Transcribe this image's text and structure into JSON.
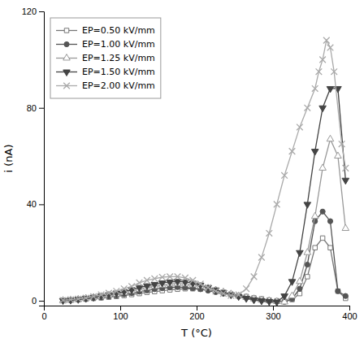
{
  "chart_data": {
    "type": "line",
    "xlabel": "T (°C)",
    "ylabel": "i (nA)",
    "xlim": [
      0,
      400
    ],
    "ylim": [
      -2,
      120
    ],
    "xticks": [
      0,
      100,
      200,
      300,
      400
    ],
    "yticks": [
      0,
      40,
      80,
      120
    ],
    "grid": false,
    "legend": "upper left",
    "series": [
      {
        "name": "EP=0.50 kV/mm",
        "color": "#777777",
        "marker": "square-open",
        "line_style": "solid",
        "x": [
          25,
          35,
          45,
          55,
          65,
          75,
          85,
          95,
          105,
          115,
          125,
          135,
          145,
          155,
          165,
          175,
          185,
          195,
          205,
          215,
          225,
          235,
          245,
          255,
          265,
          275,
          285,
          295,
          305,
          315,
          325,
          335,
          345,
          355,
          365,
          375,
          385,
          395
        ],
        "values": [
          0.1,
          0.3,
          0.5,
          0.7,
          1.0,
          1.2,
          1.5,
          1.8,
          2.2,
          2.6,
          3.0,
          3.5,
          3.8,
          4.2,
          4.5,
          4.8,
          5.0,
          5.0,
          4.8,
          4.5,
          4.0,
          3.5,
          2.8,
          2.3,
          1.8,
          1.2,
          0.8,
          0.3,
          0.0,
          -0.2,
          0.5,
          3.0,
          10,
          22,
          26,
          22,
          4,
          1
        ]
      },
      {
        "name": "EP=1.00 kV/mm",
        "color": "#555555",
        "marker": "circle",
        "line_style": "solid",
        "x": [
          25,
          35,
          45,
          55,
          65,
          75,
          85,
          95,
          105,
          115,
          125,
          135,
          145,
          155,
          165,
          175,
          185,
          195,
          205,
          215,
          225,
          235,
          245,
          255,
          265,
          275,
          285,
          295,
          305,
          315,
          325,
          335,
          345,
          355,
          365,
          375,
          385,
          395
        ],
        "values": [
          0.1,
          0.3,
          0.5,
          0.8,
          1.1,
          1.4,
          1.8,
          2.2,
          2.7,
          3.2,
          3.8,
          4.3,
          4.8,
          5.2,
          5.5,
          5.7,
          5.5,
          5.2,
          4.8,
          4.2,
          3.6,
          3.0,
          2.4,
          1.8,
          1.2,
          0.7,
          0.3,
          0.0,
          -0.2,
          -0.5,
          0.8,
          5.0,
          15,
          33,
          37,
          33,
          4,
          2
        ]
      },
      {
        "name": "EP=1.25 kV/mm",
        "color": "#999999",
        "marker": "triangle-up-open",
        "line_style": "solid",
        "x": [
          25,
          35,
          45,
          55,
          65,
          75,
          85,
          95,
          105,
          115,
          125,
          135,
          145,
          155,
          165,
          175,
          185,
          195,
          205,
          215,
          225,
          235,
          245,
          255,
          265,
          275,
          285,
          295,
          305,
          315,
          325,
          335,
          345,
          355,
          365,
          375,
          385,
          395
        ],
        "values": [
          0.1,
          0.3,
          0.6,
          1.0,
          1.4,
          1.8,
          2.3,
          2.8,
          3.4,
          4.0,
          4.8,
          5.5,
          6.0,
          6.5,
          7.0,
          7.2,
          7.0,
          6.6,
          6.0,
          5.2,
          4.4,
          3.6,
          2.8,
          2.0,
          1.4,
          0.8,
          0.3,
          0.0,
          -0.3,
          -0.5,
          2.0,
          8.0,
          20,
          35,
          55,
          67,
          60,
          30
        ]
      },
      {
        "name": "EP=1.50 kV/mm",
        "color": "#444444",
        "marker": "triangle-down",
        "line_style": "solid",
        "x": [
          25,
          35,
          45,
          55,
          65,
          75,
          85,
          95,
          105,
          115,
          125,
          135,
          145,
          155,
          165,
          175,
          185,
          195,
          205,
          215,
          225,
          235,
          245,
          255,
          265,
          275,
          285,
          295,
          305,
          315,
          325,
          335,
          345,
          355,
          365,
          375,
          385,
          395
        ],
        "values": [
          0.1,
          0.3,
          0.6,
          1.0,
          1.5,
          2.0,
          2.5,
          3.2,
          3.8,
          4.6,
          5.5,
          6.2,
          6.8,
          7.4,
          7.8,
          8.0,
          7.8,
          7.3,
          6.5,
          5.5,
          4.5,
          3.5,
          2.5,
          1.8,
          1.0,
          0.4,
          0.0,
          -0.3,
          -0.5,
          2.0,
          8.0,
          20,
          40,
          62,
          80,
          88,
          88,
          50
        ]
      },
      {
        "name": "EP=2.00 kV/mm",
        "color": "#aaaaaa",
        "marker": "x",
        "line_style": "solid",
        "x": [
          25,
          35,
          45,
          55,
          65,
          75,
          85,
          95,
          105,
          115,
          125,
          135,
          145,
          155,
          165,
          175,
          185,
          195,
          205,
          215,
          225,
          235,
          245,
          255,
          265,
          275,
          285,
          295,
          305,
          315,
          325,
          335,
          345,
          355,
          360,
          365,
          370,
          375,
          380,
          390,
          395
        ],
        "values": [
          0.2,
          0.5,
          0.8,
          1.2,
          1.8,
          2.5,
          3.2,
          4.0,
          5.0,
          6.0,
          7.5,
          8.5,
          9.2,
          9.8,
          10.0,
          10.0,
          9.5,
          8.5,
          7.0,
          5.5,
          4.0,
          3.0,
          2.2,
          2.5,
          5.0,
          10,
          18,
          28,
          40,
          52,
          62,
          72,
          80,
          88,
          95,
          100,
          108,
          105,
          95,
          65,
          55
        ]
      }
    ]
  }
}
